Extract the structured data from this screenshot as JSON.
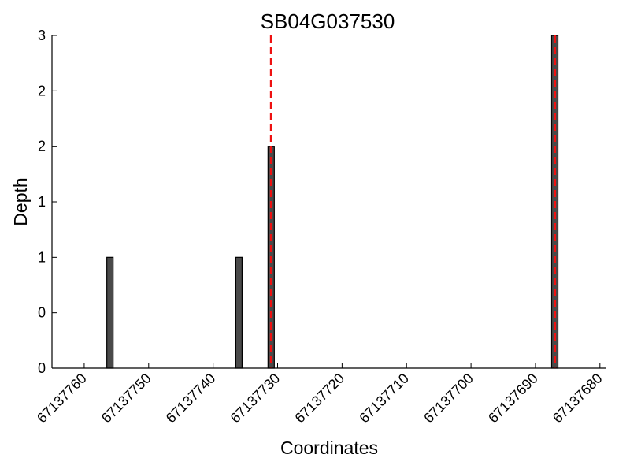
{
  "chart_data": {
    "type": "bar",
    "title": "SB04G037530",
    "xlabel": "Coordinates",
    "ylabel": "Depth",
    "xlim": [
      67137765,
      67137679
    ],
    "ylim": [
      0,
      3
    ],
    "x_ticks": [
      67137760,
      67137750,
      67137740,
      67137730,
      67137720,
      67137710,
      67137700,
      67137690,
      67137680
    ],
    "x_tick_labels": [
      "67137760",
      "67137750",
      "67137740",
      "67137730",
      "67137720",
      "67137710",
      "67137700",
      "67137690",
      "67137680"
    ],
    "y_ticks": [
      0,
      0.5,
      1,
      1.5,
      2,
      2.5,
      3
    ],
    "y_tick_labels": [
      "0",
      "0",
      "1",
      "1",
      "2",
      "2",
      "3"
    ],
    "bars": [
      {
        "x": 67137756,
        "value": 1
      },
      {
        "x": 67137736,
        "value": 1
      },
      {
        "x": 67137731,
        "value": 2
      },
      {
        "x": 67137687,
        "value": 3
      }
    ],
    "bar_color": "#4a4a4a",
    "markers": [
      {
        "x": 67137731,
        "style": "dashed",
        "color": "#ee1111"
      },
      {
        "x": 67137687,
        "style": "dashed",
        "color": "#ee1111"
      }
    ],
    "grid": false
  }
}
